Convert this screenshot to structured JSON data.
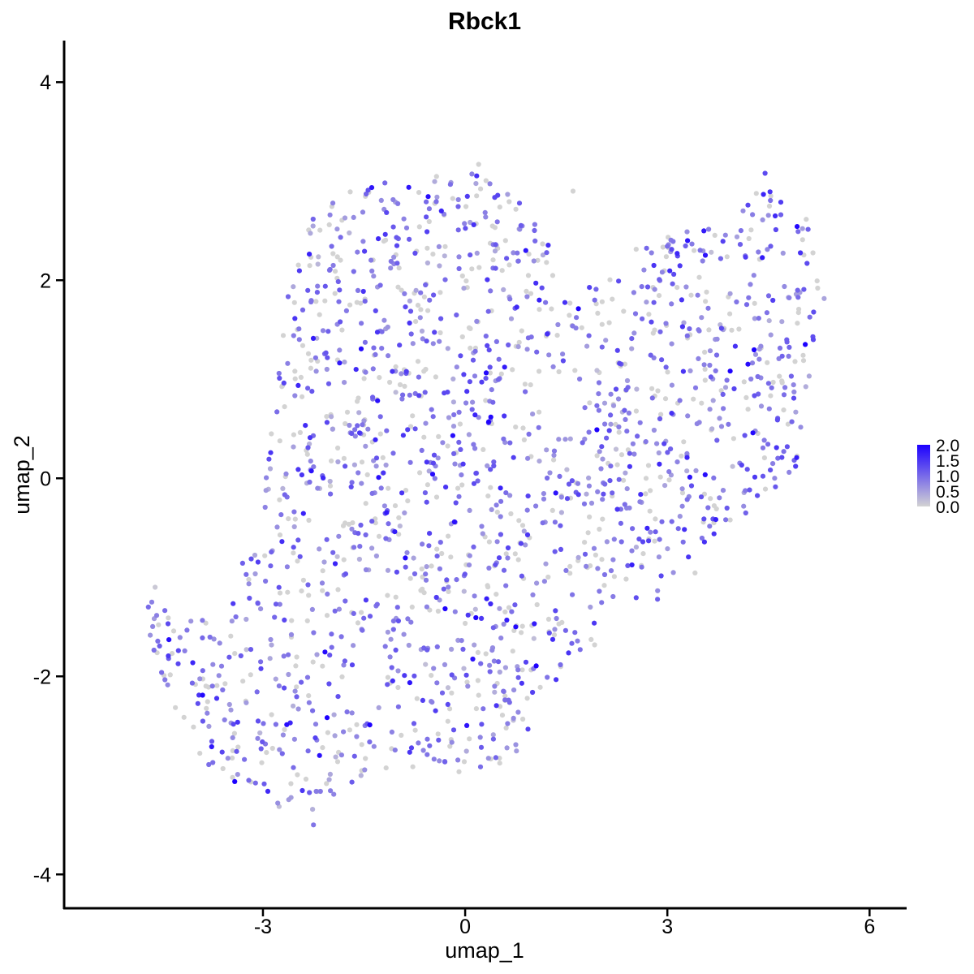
{
  "chart_data": {
    "type": "scatter",
    "title": "Rbck1",
    "xlabel": "umap_1",
    "ylabel": "umap_2",
    "xlim": [
      -5.95,
      6.55
    ],
    "ylim": [
      -4.35,
      4.42
    ],
    "x_ticks": [
      {
        "value": -3,
        "label": "-3"
      },
      {
        "value": 0,
        "label": "0"
      },
      {
        "value": 3,
        "label": "3"
      },
      {
        "value": 6,
        "label": "6"
      }
    ],
    "y_ticks": [
      {
        "value": -4,
        "label": "-4"
      },
      {
        "value": -2,
        "label": "-2"
      },
      {
        "value": 0,
        "label": "0"
      },
      {
        "value": 2,
        "label": "2"
      },
      {
        "value": 4,
        "label": "4"
      }
    ],
    "grid": false,
    "legend": {
      "position": "right",
      "kind": "colorbar",
      "min": 0,
      "max": 2.0,
      "labels": [
        "2.0",
        "1.5",
        "1.0",
        "0.5",
        "0.0"
      ],
      "low_color": "#d3d3d3",
      "high_color": "#1c00ff"
    },
    "point_count": 1800,
    "seed": 20240611,
    "region": {
      "description": "cells cluster shaped like a tilted blob: vertices in data units",
      "polygon": [
        [
          -4.7,
          -1.3
        ],
        [
          -3.6,
          -1.4
        ],
        [
          -3.0,
          -0.2
        ],
        [
          -2.9,
          1.0
        ],
        [
          -2.6,
          2.0
        ],
        [
          -2.2,
          2.8
        ],
        [
          -1.2,
          3.05
        ],
        [
          0.2,
          3.1
        ],
        [
          0.9,
          2.75
        ],
        [
          1.3,
          2.3
        ],
        [
          1.9,
          1.95
        ],
        [
          2.4,
          2.3
        ],
        [
          3.3,
          2.55
        ],
        [
          4.0,
          2.6
        ],
        [
          4.5,
          3.05
        ],
        [
          5.1,
          2.6
        ],
        [
          5.4,
          2.0
        ],
        [
          5.1,
          0.9
        ],
        [
          5.0,
          0.0
        ],
        [
          4.3,
          -0.3
        ],
        [
          3.6,
          -0.9
        ],
        [
          2.9,
          -1.2
        ],
        [
          2.3,
          -1.5
        ],
        [
          1.6,
          -1.9
        ],
        [
          1.05,
          -2.3
        ],
        [
          0.8,
          -2.9
        ],
        [
          0.2,
          -3.05
        ],
        [
          -0.6,
          -2.9
        ],
        [
          -1.5,
          -3.0
        ],
        [
          -2.4,
          -3.45
        ],
        [
          -3.1,
          -3.2
        ],
        [
          -3.8,
          -3.0
        ],
        [
          -4.4,
          -2.2
        ],
        [
          -4.7,
          -1.6
        ]
      ]
    },
    "outliers": [
      {
        "x": -4.6,
        "y": -1.1,
        "v": 0.1
      },
      {
        "x": -4.65,
        "y": -1.25,
        "v": 0.8
      },
      {
        "x": -4.7,
        "y": -1.3,
        "v": 1.0
      },
      {
        "x": -4.55,
        "y": -1.48,
        "v": 0.0
      },
      {
        "x": -4.4,
        "y": -1.82,
        "v": 1.1
      },
      {
        "x": 1.6,
        "y": 2.9,
        "v": 0.0
      },
      {
        "x": 0.2,
        "y": 3.17,
        "v": 0.0
      },
      {
        "x": 4.45,
        "y": 3.08,
        "v": 1.3
      },
      {
        "x": -2.25,
        "y": -3.5,
        "v": 0.9
      },
      {
        "x": 0.75,
        "y": -1.5,
        "v": 1.9
      },
      {
        "x": 1.1,
        "y": 1.8,
        "v": 1.7
      },
      {
        "x": 0.9,
        "y": 2.3,
        "v": 1.8
      },
      {
        "x": 3.3,
        "y": 2.4,
        "v": 1.8
      },
      {
        "x": 4.6,
        "y": 2.65,
        "v": 1.6
      }
    ],
    "expression_distribution": {
      "zero_fraction": 0.3,
      "mean_nonzero": 0.9,
      "high_fraction": 0.06
    }
  }
}
